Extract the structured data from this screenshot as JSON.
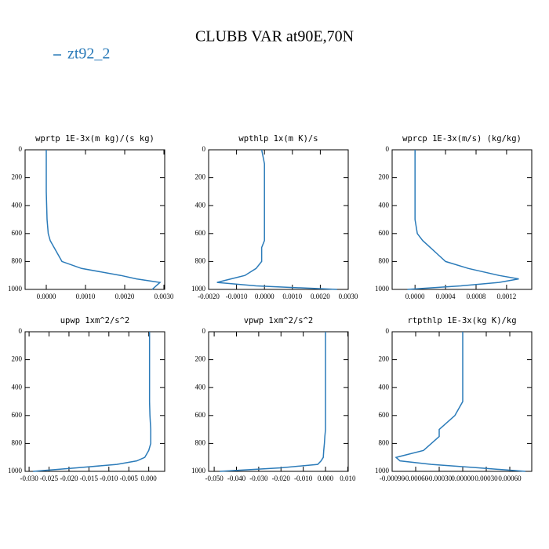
{
  "title": "CLUBB VAR at90E,70N",
  "legend": {
    "name": "zt92_2",
    "color": "#2b7bb9"
  },
  "chart_data": [
    {
      "type": "line",
      "title": "wprtp  1E-3x(m kg)/(s kg)",
      "y": [
        0,
        100,
        200,
        300,
        400,
        500,
        600,
        650,
        700,
        750,
        800,
        850,
        900,
        925,
        950,
        975,
        1000
      ],
      "values": [
        0,
        0,
        0,
        0,
        1e-05,
        2e-05,
        5e-05,
        0.0001,
        0.0002,
        0.0003,
        0.0004,
        0.0009,
        0.0019,
        0.0023,
        0.0029,
        0.0028,
        0.0027
      ],
      "xlim": [
        -0.00054,
        0.00302
      ],
      "xticks": [
        {
          "value": 0,
          "label": "0.0000"
        },
        {
          "value": 0.001,
          "label": "0.0010"
        },
        {
          "value": 0.002,
          "label": "0.0020"
        },
        {
          "value": 0.003,
          "label": "0.0030"
        }
      ],
      "ylim": [
        1000,
        0
      ],
      "yticks": [
        0,
        200,
        400,
        600,
        800,
        1000
      ]
    },
    {
      "type": "line",
      "title": "wpthlp  1x(m K)/s",
      "y": [
        0,
        100,
        200,
        300,
        400,
        500,
        600,
        650,
        700,
        750,
        800,
        850,
        900,
        925,
        950,
        975,
        1000
      ],
      "values": [
        -0.0001,
        0,
        0,
        0,
        0,
        0,
        0,
        0,
        -0.0001,
        -0.0001,
        -0.0001,
        -0.0003,
        -0.0007,
        -0.0012,
        -0.0017,
        -0.0003,
        0.0026
      ],
      "xlim": [
        -0.002,
        0.003
      ],
      "xticks": [
        {
          "value": -0.002,
          "label": "-0.0020"
        },
        {
          "value": -0.001,
          "label": "-0.0010"
        },
        {
          "value": 0,
          "label": "0.0000"
        },
        {
          "value": 0.001,
          "label": "0.0010"
        },
        {
          "value": 0.002,
          "label": "0.0020"
        },
        {
          "value": 0.003,
          "label": "0.0030"
        }
      ],
      "ylim": [
        1000,
        0
      ],
      "yticks": [
        0,
        200,
        400,
        600,
        800,
        1000
      ]
    },
    {
      "type": "line",
      "title": "wprcp  1E-3x(m/s) (kg/kg)",
      "y": [
        0,
        100,
        200,
        300,
        400,
        500,
        600,
        650,
        700,
        750,
        800,
        850,
        900,
        925,
        950,
        975,
        1000
      ],
      "values": [
        0,
        0,
        0,
        0,
        0,
        0,
        3e-05,
        0.0001,
        0.0002,
        0.0003,
        0.0004,
        0.0007,
        0.0011,
        0.00136,
        0.0011,
        0.0006,
        -0.0001
      ],
      "xlim": [
        -0.0003,
        0.00153
      ],
      "xticks": [
        {
          "value": 0,
          "label": "0.0000"
        },
        {
          "value": 0.0004,
          "label": "0.0004"
        },
        {
          "value": 0.0008,
          "label": "0.0008"
        },
        {
          "value": 0.0012,
          "label": "0.0012"
        }
      ],
      "ylim": [
        1000,
        0
      ],
      "yticks": [
        0,
        200,
        400,
        600,
        800,
        1000
      ]
    },
    {
      "type": "line",
      "title": "upwp  1xm^2/s^2",
      "y": [
        0,
        100,
        200,
        300,
        400,
        500,
        600,
        650,
        700,
        750,
        800,
        850,
        900,
        925,
        950,
        975,
        1000
      ],
      "values": [
        0.0002,
        0.0002,
        0.0002,
        0.0002,
        0.0002,
        0.0002,
        0.0003,
        0.0004,
        0.0005,
        0.0005,
        0.0005,
        0,
        -0.001,
        -0.003,
        -0.008,
        -0.018,
        -0.029
      ],
      "xlim": [
        -0.031,
        0.004
      ],
      "xticks": [
        {
          "value": -0.03,
          "label": "-0.030"
        },
        {
          "value": -0.025,
          "label": "-0.025"
        },
        {
          "value": -0.02,
          "label": "-0.020"
        },
        {
          "value": -0.015,
          "label": "-0.015"
        },
        {
          "value": -0.01,
          "label": "-0.010"
        },
        {
          "value": -0.005,
          "label": "-0.005"
        },
        {
          "value": 0,
          "label": "0.000"
        }
      ],
      "ylim": [
        1000,
        0
      ],
      "yticks": [
        0,
        200,
        400,
        600,
        800,
        1000
      ]
    },
    {
      "type": "line",
      "title": "vpwp  1xm^2/s^2",
      "y": [
        0,
        100,
        200,
        300,
        400,
        500,
        600,
        650,
        700,
        750,
        800,
        850,
        900,
        925,
        950,
        975,
        1000
      ],
      "values": [
        0,
        0,
        0,
        0,
        0,
        0,
        0,
        0,
        0,
        -0.0003,
        -0.0005,
        -0.0008,
        -0.001,
        -0.002,
        -0.0035,
        -0.02,
        -0.0475
      ],
      "xlim": [
        -0.0525,
        0.0102
      ],
      "xticks": [
        {
          "value": -0.05,
          "label": "-0.050"
        },
        {
          "value": -0.04,
          "label": "-0.040"
        },
        {
          "value": -0.03,
          "label": "-0.030"
        },
        {
          "value": -0.02,
          "label": "-0.020"
        },
        {
          "value": -0.01,
          "label": "-0.010"
        },
        {
          "value": 0,
          "label": "0.000"
        },
        {
          "value": 0.01,
          "label": "0.010"
        }
      ],
      "ylim": [
        1000,
        0
      ],
      "yticks": [
        0,
        200,
        400,
        600,
        800,
        1000
      ]
    },
    {
      "type": "line",
      "title": "rtpthlp  1E-3x(kg K)/kg",
      "y": [
        0,
        100,
        200,
        300,
        400,
        500,
        600,
        650,
        700,
        750,
        800,
        850,
        900,
        925,
        950,
        975,
        1000
      ],
      "values": [
        0,
        0,
        0,
        0,
        0,
        0,
        -0.0001,
        -0.0002,
        -0.0003,
        -0.0003,
        -0.0004,
        -0.0005,
        -0.00085,
        -0.0008,
        -0.0004,
        0.0002,
        0.0008
      ],
      "xlim": [
        -0.0009,
        0.00088
      ],
      "xticks": [
        {
          "value": -0.0009,
          "label": "-0.00090"
        },
        {
          "value": -0.0006,
          "label": "-0.00060"
        },
        {
          "value": -0.0003,
          "label": "-0.00030"
        },
        {
          "value": 0,
          "label": "0.00000"
        },
        {
          "value": 0.0003,
          "label": "0.00030"
        },
        {
          "value": 0.0006,
          "label": "0.00060"
        }
      ],
      "ylim": [
        1000,
        0
      ],
      "yticks": [
        0,
        200,
        400,
        600,
        800,
        1000
      ]
    }
  ]
}
